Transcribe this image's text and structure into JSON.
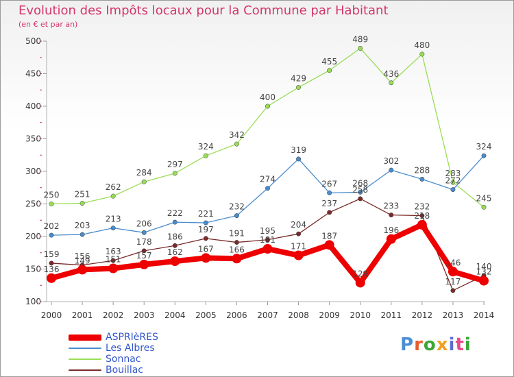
{
  "title": "Evolution des Impôts locaux pour la Commune par Habitant",
  "subtitle": "(en € et par an)",
  "logo": {
    "text": "Proxiti",
    "colors": [
      "#4a8fd6",
      "#e85d2a",
      "#3aa635",
      "#f0a020",
      "#5a6fd0",
      "#e84a8a",
      "#3aa635"
    ]
  },
  "chart_data": {
    "type": "line",
    "title": "Evolution des Impôts locaux pour la Commune par Habitant",
    "subtitle": "(en € et par an)",
    "xlabel": "",
    "ylabel": "",
    "ylim": [
      100,
      500
    ],
    "yticks": [
      100,
      150,
      200,
      250,
      300,
      350,
      400,
      450,
      500
    ],
    "x": [
      2000,
      2001,
      2002,
      2003,
      2004,
      2005,
      2006,
      2007,
      2008,
      2009,
      2010,
      2011,
      2012,
      2013,
      2014
    ],
    "grid": false,
    "legend": "bottom-left",
    "series": [
      {
        "name": "ASPRIèRES",
        "color": "#ee0000",
        "weight": "heavy",
        "values": [
          136,
          149,
          151,
          157,
          162,
          167,
          166,
          181,
          171,
          187,
          129,
          196,
          218,
          146,
          132
        ],
        "labels": [
          "136",
          "149",
          "151",
          "157",
          "162",
          "167",
          "166",
          "181",
          "171",
          "187",
          "129",
          "196",
          "218",
          "146",
          "132"
        ]
      },
      {
        "name": "Les Albres",
        "color": "#4a8ccc",
        "weight": "thin",
        "values": [
          202,
          203,
          213,
          206,
          222,
          221,
          232,
          274,
          319,
          267,
          268,
          302,
          288,
          272,
          324
        ],
        "labels": [
          "202",
          "203",
          "213",
          "206",
          "222",
          "221",
          "232",
          "274",
          "319",
          "267",
          "268",
          "302",
          "288",
          "272",
          "324"
        ]
      },
      {
        "name": "Sonnac",
        "color": "#99dd55",
        "weight": "thin",
        "values": [
          250,
          251,
          262,
          284,
          297,
          324,
          342,
          400,
          429,
          455,
          489,
          436,
          480,
          283,
          245
        ],
        "labels": [
          "250",
          "251",
          "262",
          "284",
          "297",
          "324",
          "342",
          "400",
          "429",
          "455",
          "489",
          "436",
          "480",
          "283",
          "245"
        ]
      },
      {
        "name": "Bouillac",
        "color": "#7a2a2a",
        "weight": "thin",
        "values": [
          159,
          156,
          163,
          178,
          186,
          197,
          191,
          195,
          204,
          237,
          258,
          233,
          232,
          117,
          140
        ],
        "labels": [
          "159",
          "156",
          "163",
          "178",
          "186",
          "197",
          "191",
          "195",
          "204",
          "237",
          "258",
          "233",
          "232",
          "117",
          "140"
        ]
      }
    ]
  }
}
